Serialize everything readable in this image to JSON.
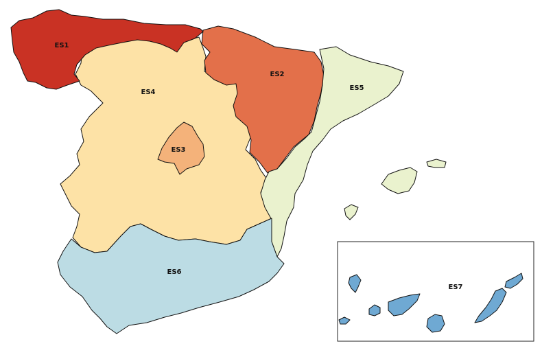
{
  "regions": {
    "es1": {
      "label": "ES1",
      "color": "#c93224"
    },
    "es2": {
      "label": "ES2",
      "color": "#e3704a"
    },
    "es3": {
      "label": "ES3",
      "color": "#f4b27a"
    },
    "es4": {
      "label": "ES4",
      "color": "#fde2a6"
    },
    "es5": {
      "label": "ES5",
      "color": "#eaf2ce"
    },
    "es6": {
      "label": "ES6",
      "color": "#bcdce4"
    },
    "es7": {
      "label": "ES7",
      "color": "#6fa9d3"
    }
  }
}
